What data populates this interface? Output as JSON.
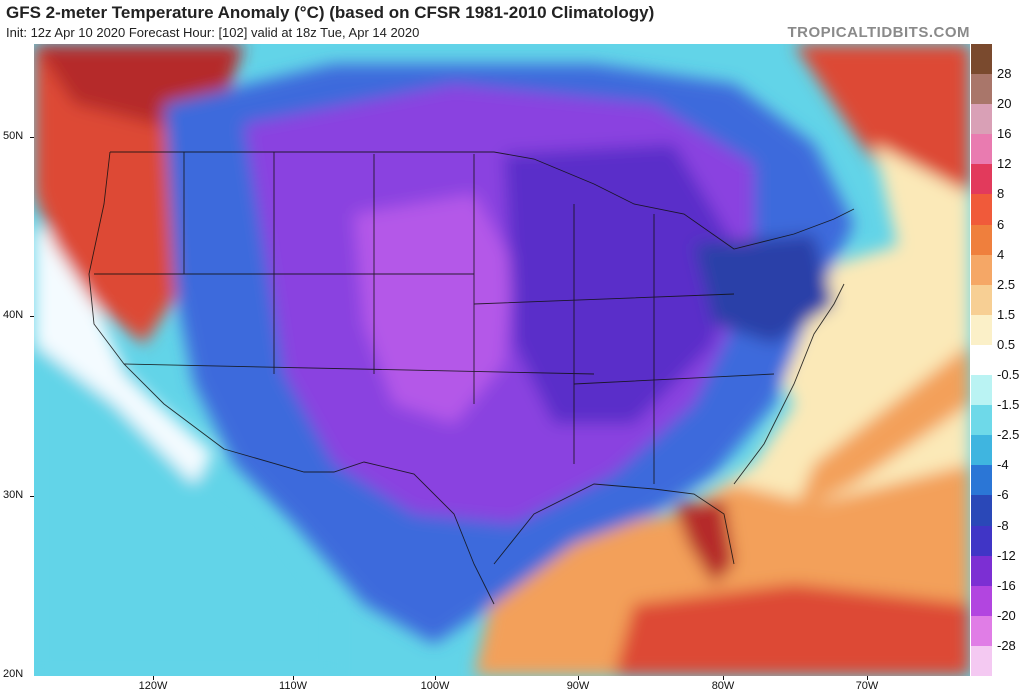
{
  "header": {
    "title": "GFS 2-meter Temperature Anomaly (°C) (based on CFSR 1981-2010 Climatology)",
    "subtitle": "Init: 12z Apr 10 2020   Forecast Hour: [102]   valid at 18z Tue, Apr 14 2020",
    "brand": "TROPICALTIDBITS.COM"
  },
  "axes": {
    "lat_labels": [
      "50N",
      "40N",
      "30N",
      "20N"
    ],
    "lon_labels": [
      "120W",
      "110W",
      "100W",
      "90W",
      "80W",
      "70W"
    ]
  },
  "colorbar": {
    "labels": [
      "28",
      "20",
      "16",
      "12",
      "8",
      "6",
      "4",
      "2.5",
      "1.5",
      "0.5",
      "-0.5",
      "-1.5",
      "-2.5",
      "-4",
      "-6",
      "-8",
      "-12",
      "-16",
      "-20",
      "-28"
    ],
    "colors": [
      "#7a4a2e",
      "#a9766a",
      "#d9a0b6",
      "#e97bb0",
      "#e23a5c",
      "#f05a3a",
      "#ef7f3d",
      "#f5a766",
      "#f7cf94",
      "#fbf0c8",
      "#ffffff",
      "#baf3f3",
      "#6ed9e9",
      "#3fb5e0",
      "#2b76d6",
      "#2a48b8",
      "#4035c6",
      "#7c2fd3",
      "#b245e0",
      "#e07de6",
      "#f4c9f2"
    ]
  },
  "map": {
    "colors": {
      "deep_purple": "#5a2fc9",
      "violet": "#8a43e0",
      "magenta": "#b458e8",
      "blue": "#3e6bdc",
      "navy": "#2b3fa8",
      "cyan": "#62d4e8",
      "white": "#f4fbff",
      "cream": "#fbe9b8",
      "orange": "#f3a05a",
      "red": "#dd4a36",
      "darkred": "#b52a2a"
    }
  }
}
